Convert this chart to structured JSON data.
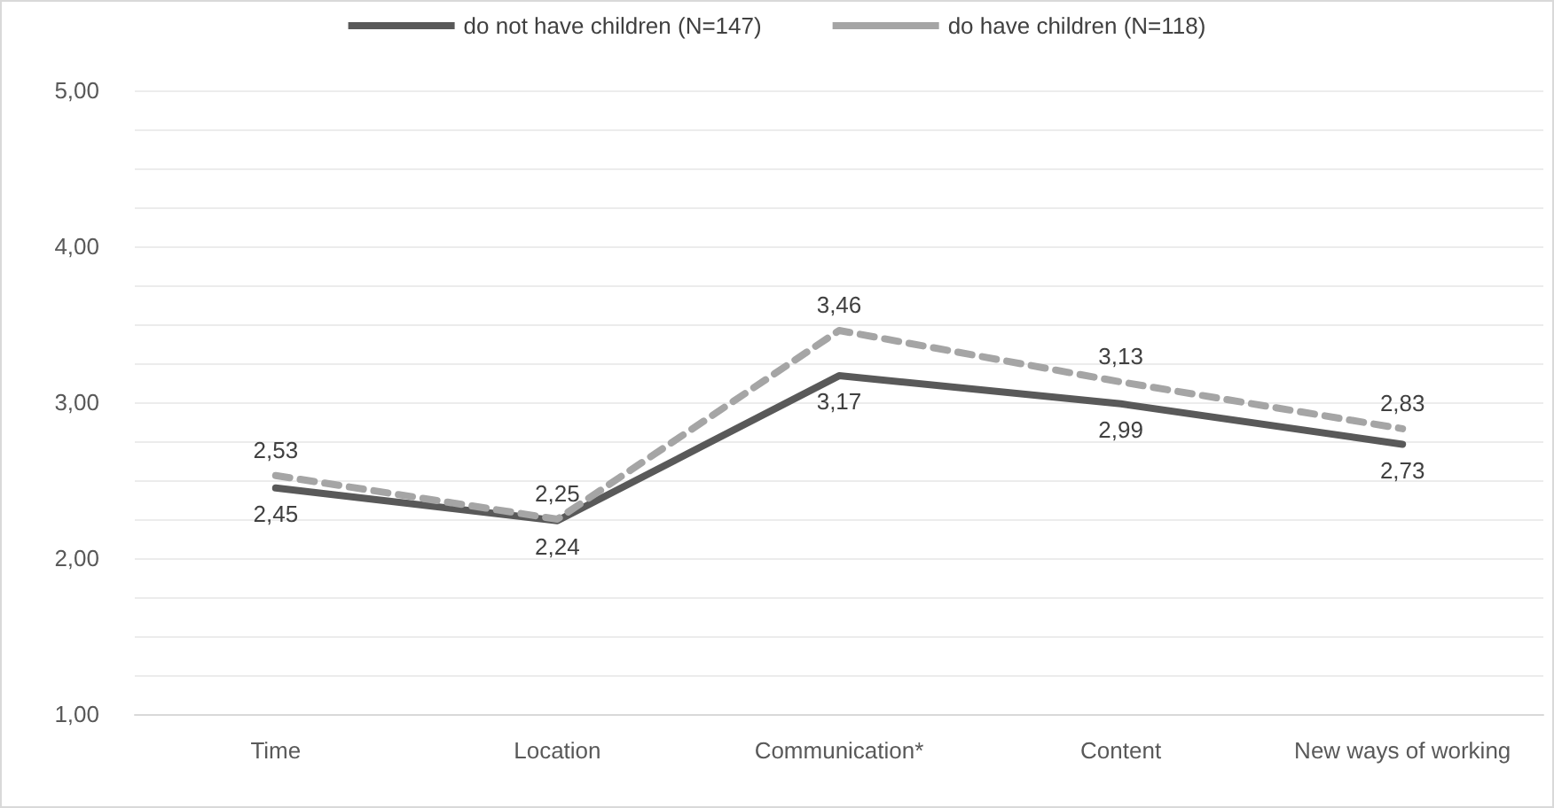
{
  "chart_data": {
    "type": "line",
    "categories": [
      "Time",
      "Location",
      "Communication*",
      "Content",
      "New ways of working"
    ],
    "series": [
      {
        "name": "do not have children (N=147)",
        "color": "#595959",
        "line_style": "solid",
        "values": [
          2.45,
          2.24,
          3.17,
          2.99,
          2.73
        ],
        "value_labels": [
          "2,45",
          "2,24",
          "3,17",
          "2,99",
          "2,73"
        ]
      },
      {
        "name": "do have children (N=118)",
        "color": "#a5a5a5",
        "line_style": "dashed",
        "values": [
          2.53,
          2.25,
          3.46,
          3.13,
          2.83
        ],
        "value_labels": [
          "2,53",
          "2,25",
          "3,46",
          "3,13",
          "2,83"
        ]
      }
    ],
    "ylim": [
      1,
      5
    ],
    "yticks": [
      {
        "value": 1,
        "label": "1,00"
      },
      {
        "value": 1.25,
        "label": null
      },
      {
        "value": 1.5,
        "label": null
      },
      {
        "value": 1.75,
        "label": null
      },
      {
        "value": 2,
        "label": "2,00"
      },
      {
        "value": 2.25,
        "label": null
      },
      {
        "value": 2.5,
        "label": null
      },
      {
        "value": 2.75,
        "label": null
      },
      {
        "value": 3,
        "label": "3,00"
      },
      {
        "value": 3.25,
        "label": null
      },
      {
        "value": 3.5,
        "label": null
      },
      {
        "value": 3.75,
        "label": null
      },
      {
        "value": 4,
        "label": "4,00"
      },
      {
        "value": 4.25,
        "label": null
      },
      {
        "value": 4.5,
        "label": null
      },
      {
        "value": 4.75,
        "label": null
      },
      {
        "value": 5,
        "label": "5,00"
      }
    ],
    "grid": "y",
    "legend": "top",
    "marker": "none"
  }
}
